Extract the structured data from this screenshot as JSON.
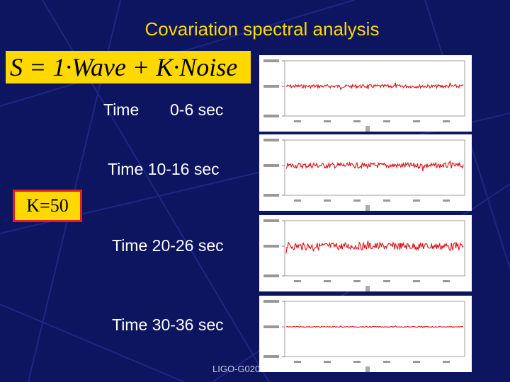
{
  "slide": {
    "title": "Covariation spectral analysis",
    "formula": "S = 1·Wave + K·Noise",
    "k_label": "K=50",
    "footer": "LIGO-G020",
    "colors": {
      "background": "#0d1460",
      "title": "#ffd800",
      "highlight": "#ffd800",
      "border": "#e02020",
      "trace": "#dd1111"
    }
  },
  "segments": [
    {
      "word": "Time",
      "range": "0-6 sec",
      "noise_amplitude": 0.35
    },
    {
      "label": "Time 10-16 sec",
      "noise_amplitude": 0.55
    },
    {
      "label": "Time 20-26 sec",
      "noise_amplitude": 0.75
    },
    {
      "label": "Time 30-36 sec",
      "noise_amplitude": 0.08
    }
  ]
}
